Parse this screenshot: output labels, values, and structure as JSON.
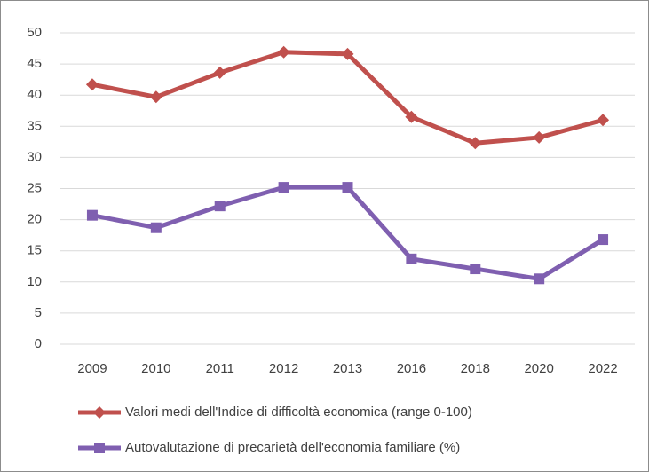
{
  "chart_data": {
    "type": "line",
    "categories": [
      "2009",
      "2010",
      "2011",
      "2012",
      "2013",
      "2016",
      "2018",
      "2020",
      "2022"
    ],
    "series": [
      {
        "name": "Valori medi dell'Indice di difficoltà economica (range 0-100)",
        "color": "#c0504d",
        "marker": "diamond",
        "values": [
          41.7,
          39.7,
          43.6,
          46.9,
          46.6,
          36.5,
          32.3,
          33.2,
          36.0
        ]
      },
      {
        "name": "Autovalutazione di precarietà dell'economia familiare (%)",
        "color": "#7f5fb0",
        "marker": "square",
        "values": [
          20.7,
          18.7,
          22.2,
          25.2,
          25.2,
          13.7,
          12.1,
          10.5,
          16.8
        ]
      }
    ],
    "ylim": [
      0,
      50
    ],
    "yticks": [
      0,
      5,
      10,
      15,
      20,
      25,
      30,
      35,
      40,
      45,
      50
    ],
    "grid": true,
    "legend": "bottom"
  }
}
